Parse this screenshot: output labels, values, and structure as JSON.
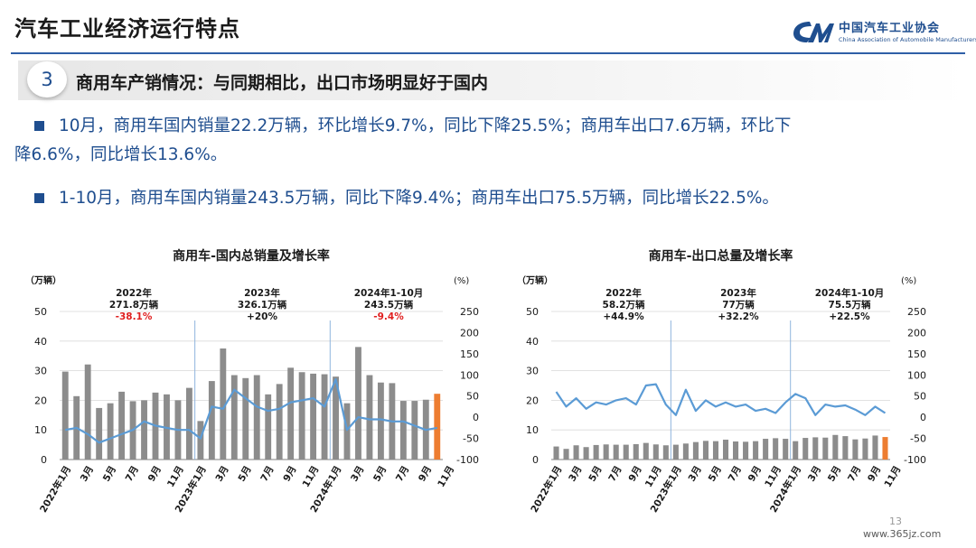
{
  "slide_title": "汽车工业经济运行特点",
  "logo": {
    "name_cn": "中国汽车工业协会",
    "name_en": "China Association of Automobile Manufacturers"
  },
  "section": {
    "number": "3",
    "heading": "商用车产销情况：与同期相比，出口市场明显好于国内"
  },
  "bullets": [
    {
      "line1": "10月，商用车国内销量22.2万辆，环比增长9.7%，同比下降25.5%；商用车出口7.6万辆，环比下",
      "line2": "降6.6%，同比增长13.6%。"
    },
    {
      "line1": "1-10月，商用车国内销量243.5万辆，同比下降9.4%；商用车出口75.5万辆，同比增长22.5%。"
    }
  ],
  "page_number": "13",
  "watermark": "www.365jz.com",
  "chart_data": [
    {
      "type": "bar",
      "title": "商用车-国内总销量及增长率",
      "y_left_unit": "（万辆）",
      "y_right_unit": "(%)",
      "ylim_left": [
        0,
        50
      ],
      "ylim_right": [
        -100,
        250
      ],
      "y_left_ticks": [
        "0",
        "10",
        "20",
        "30",
        "40",
        "50"
      ],
      "y_right_ticks": [
        "-100",
        "-50",
        "0",
        "50",
        "100",
        "150",
        "200",
        "250"
      ],
      "x_tick_labels": [
        "2022年1月",
        "3月",
        "5月",
        "7月",
        "9月",
        "11月",
        "2023年1月",
        "3月",
        "5月",
        "7月",
        "9月",
        "11月",
        "2024年1月",
        "3月",
        "5月",
        "7月",
        "9月",
        "11月"
      ],
      "bar_values": [
        29.7,
        21.4,
        32.1,
        17.4,
        19.0,
        22.9,
        19.7,
        20.0,
        22.6,
        22.0,
        20.0,
        24.2,
        13.0,
        26.5,
        37.5,
        28.5,
        27.5,
        28.5,
        22.0,
        25.5,
        31.0,
        29.5,
        29.0,
        28.8,
        28.0,
        19.0,
        38.0,
        28.5,
        26.0,
        25.8,
        19.8,
        19.8,
        20.2,
        22.2
      ],
      "growth_values": [
        -30,
        -25,
        -40,
        -60,
        -50,
        -40,
        -30,
        -10,
        -20,
        -25,
        -30,
        -30,
        -50,
        25,
        20,
        65,
        45,
        25,
        15,
        20,
        35,
        40,
        45,
        25,
        90,
        -30,
        0,
        -5,
        -5,
        -10,
        -10,
        -20,
        -30,
        -25
      ],
      "annotations": [
        {
          "year": "2022年",
          "total": "271.8万辆",
          "change": "-38.1%",
          "change_color": "#e02020"
        },
        {
          "year": "2023年",
          "total": "326.1万辆",
          "change": "+20%",
          "change_color": "#1a1a1a"
        },
        {
          "year": "2024年1-10月",
          "total": "243.5万辆",
          "change": "-9.4%",
          "change_color": "#e02020"
        }
      ],
      "bar_color": "#8c8c8c",
      "highlight_color": "#ed7d31",
      "line_color": "#5b9bd5",
      "grid": true
    },
    {
      "type": "bar",
      "title": "商用车-出口总量及增长率",
      "y_left_unit": "（万辆）",
      "y_right_unit": "(%)",
      "ylim_left": [
        0,
        50
      ],
      "ylim_right": [
        -100,
        250
      ],
      "y_left_ticks": [
        "0",
        "10",
        "20",
        "30",
        "40",
        "50"
      ],
      "y_right_ticks": [
        "-100",
        "-50",
        "0",
        "50",
        "100",
        "150",
        "200",
        "250"
      ],
      "x_tick_labels": [
        "2022年1月",
        "3月",
        "5月",
        "7月",
        "9月",
        "11月",
        "2023年1月",
        "3月",
        "5月",
        "7月",
        "9月",
        "11月",
        "2024年1月",
        "3月",
        "5月",
        "7月",
        "9月",
        "11月"
      ],
      "bar_values": [
        4.4,
        3.6,
        4.8,
        4.2,
        4.9,
        5.1,
        5.0,
        5.0,
        5.2,
        5.6,
        5.1,
        4.8,
        5.0,
        5.4,
        5.9,
        6.3,
        6.2,
        6.7,
        6.1,
        6.0,
        6.2,
        7.0,
        7.2,
        7.0,
        6.2,
        7.3,
        7.5,
        7.4,
        8.3,
        7.9,
        6.8,
        7.1,
        8.1,
        7.6
      ],
      "growth_values": [
        60,
        25,
        45,
        20,
        35,
        30,
        40,
        45,
        30,
        75,
        78,
        30,
        5,
        65,
        15,
        40,
        25,
        35,
        25,
        30,
        15,
        20,
        10,
        35,
        55,
        45,
        5,
        30,
        25,
        28,
        18,
        5,
        25,
        10
      ],
      "annotations": [
        {
          "year": "2022年",
          "total": "58.2万辆",
          "change": "+44.9%",
          "change_color": "#1a1a1a"
        },
        {
          "year": "2023年",
          "total": "77万辆",
          "change": "+32.2%",
          "change_color": "#1a1a1a"
        },
        {
          "year": "2024年1-10月",
          "total": "75.5万辆",
          "change": "+22.5%",
          "change_color": "#1a1a1a"
        }
      ],
      "bar_color": "#8c8c8c",
      "highlight_color": "#ed7d31",
      "line_color": "#5b9bd5",
      "grid": true
    }
  ]
}
